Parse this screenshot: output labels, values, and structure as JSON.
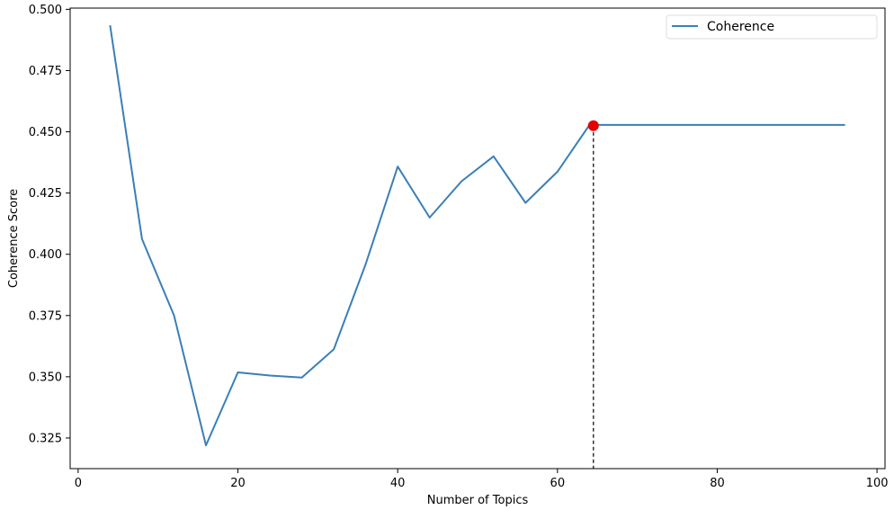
{
  "chart_data": {
    "type": "line",
    "xlabel": "Number of Topics",
    "ylabel": "Coherence Score",
    "xlim": [
      -1,
      101
    ],
    "ylim": [
      0.3125,
      0.5005
    ],
    "xticks": [
      0,
      20,
      40,
      60,
      80,
      100
    ],
    "xtick_labels": [
      "0",
      "20",
      "40",
      "60",
      "80",
      "100"
    ],
    "yticks": [
      0.325,
      0.35,
      0.375,
      0.4,
      0.425,
      0.45,
      0.475,
      0.5
    ],
    "ytick_labels": [
      "0.325",
      "0.350",
      "0.375",
      "0.400",
      "0.425",
      "0.450",
      "0.475",
      "0.500"
    ],
    "grid": false,
    "legend": {
      "position": "top-right",
      "entries": [
        "Coherence"
      ]
    },
    "colors": {
      "series": "#3a7fb8",
      "marker": "#e60000",
      "axes": "#000000"
    },
    "series": [
      {
        "name": "Coherence",
        "x": [
          4,
          8,
          12,
          16,
          20,
          24,
          28,
          32,
          36,
          40,
          44,
          48,
          52,
          56,
          60,
          64,
          68,
          72,
          76,
          80,
          84,
          88,
          92,
          96
        ],
        "values": [
          0.4935,
          0.4062,
          0.375,
          0.322,
          0.3518,
          0.3505,
          0.3497,
          0.3612,
          0.396,
          0.4358,
          0.415,
          0.4298,
          0.44,
          0.421,
          0.4337,
          0.4528,
          0.4528,
          0.4528,
          0.4528,
          0.4528,
          0.4528,
          0.4528,
          0.4528,
          0.4528
        ]
      }
    ],
    "highlight": {
      "x": 64.5,
      "y": 0.4525
    }
  }
}
